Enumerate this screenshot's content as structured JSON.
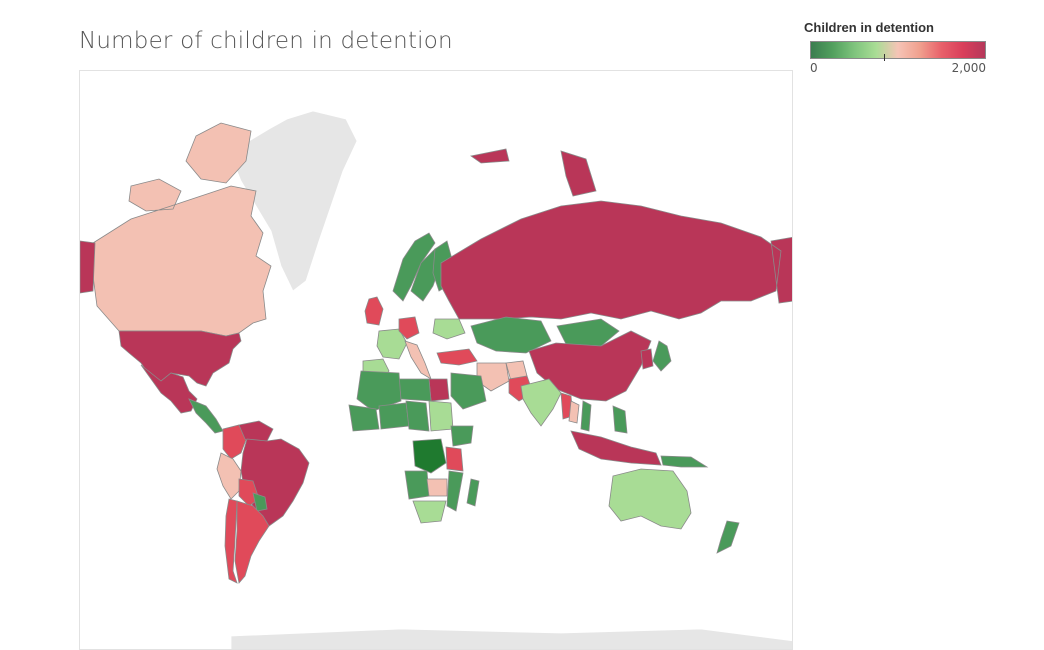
{
  "title": "Number of children in detention",
  "legend": {
    "title": "Children in detention",
    "min_label": "0",
    "max_label": "2,000",
    "min_value": 0,
    "max_value": 2000,
    "colors": [
      "#3a7d4f",
      "#52a05e",
      "#7fc47d",
      "#a9dd95",
      "#f5c4b6",
      "#f0a08e",
      "#e8606a",
      "#d93e5a",
      "#b5385a"
    ]
  },
  "map": {
    "no_data_color": "#e6e6e6",
    "border_color": "#8a8a8a"
  },
  "regions": [
    {
      "name": "Greenland",
      "level": "no-data"
    },
    {
      "name": "Canada",
      "level": "medium"
    },
    {
      "name": "United States",
      "level": "very-high"
    },
    {
      "name": "Alaska",
      "level": "very-high"
    },
    {
      "name": "Mexico",
      "level": "very-high"
    },
    {
      "name": "Central America",
      "level": "low"
    },
    {
      "name": "Colombia",
      "level": "high"
    },
    {
      "name": "Venezuela",
      "level": "very-high"
    },
    {
      "name": "Brazil",
      "level": "very-high"
    },
    {
      "name": "Peru",
      "level": "medium"
    },
    {
      "name": "Bolivia",
      "level": "high"
    },
    {
      "name": "Paraguay",
      "level": "low"
    },
    {
      "name": "Argentina",
      "level": "high"
    },
    {
      "name": "Chile",
      "level": "high"
    },
    {
      "name": "United Kingdom",
      "level": "high"
    },
    {
      "name": "Norway",
      "level": "low"
    },
    {
      "name": "Sweden",
      "level": "low"
    },
    {
      "name": "Finland",
      "level": "low"
    },
    {
      "name": "France",
      "level": "lowish"
    },
    {
      "name": "Spain",
      "level": "lowish"
    },
    {
      "name": "Germany",
      "level": "high"
    },
    {
      "name": "Italy",
      "level": "medium"
    },
    {
      "name": "Ukraine",
      "level": "lowish"
    },
    {
      "name": "Turkey",
      "level": "high"
    },
    {
      "name": "Russia",
      "level": "very-high"
    },
    {
      "name": "Kazakhstan",
      "level": "low"
    },
    {
      "name": "Mongolia",
      "level": "low"
    },
    {
      "name": "China",
      "level": "very-high"
    },
    {
      "name": "Iran",
      "level": "medium"
    },
    {
      "name": "Afghanistan",
      "level": "medium"
    },
    {
      "name": "Pakistan",
      "level": "high"
    },
    {
      "name": "India",
      "level": "lowish"
    },
    {
      "name": "Myanmar",
      "level": "high"
    },
    {
      "name": "Thailand",
      "level": "medium"
    },
    {
      "name": "Vietnam",
      "level": "low"
    },
    {
      "name": "Philippines",
      "level": "low"
    },
    {
      "name": "Indonesia",
      "level": "very-high"
    },
    {
      "name": "Papua New Guinea",
      "level": "low"
    },
    {
      "name": "Japan",
      "level": "low"
    },
    {
      "name": "Korea",
      "level": "very-high"
    },
    {
      "name": "Saudi Arabia",
      "level": "low"
    },
    {
      "name": "Egypt",
      "level": "very-high"
    },
    {
      "name": "Libya",
      "level": "low"
    },
    {
      "name": "Algeria",
      "level": "low"
    },
    {
      "name": "Mali",
      "level": "low"
    },
    {
      "name": "Niger",
      "level": "low"
    },
    {
      "name": "Chad",
      "level": "low"
    },
    {
      "name": "Sudan",
      "level": "lowish"
    },
    {
      "name": "Ethiopia",
      "level": "low"
    },
    {
      "name": "DR Congo",
      "level": "very-low"
    },
    {
      "name": "Angola",
      "level": "low"
    },
    {
      "name": "Tanzania",
      "level": "high"
    },
    {
      "name": "Zambia",
      "level": "medium"
    },
    {
      "name": "Mozambique",
      "level": "low"
    },
    {
      "name": "South Africa",
      "level": "lowish"
    },
    {
      "name": "Madagascar",
      "level": "low"
    },
    {
      "name": "Australia",
      "level": "lowish"
    },
    {
      "name": "New Zealand",
      "level": "low"
    },
    {
      "name": "Antarctica",
      "level": "no-data"
    }
  ]
}
